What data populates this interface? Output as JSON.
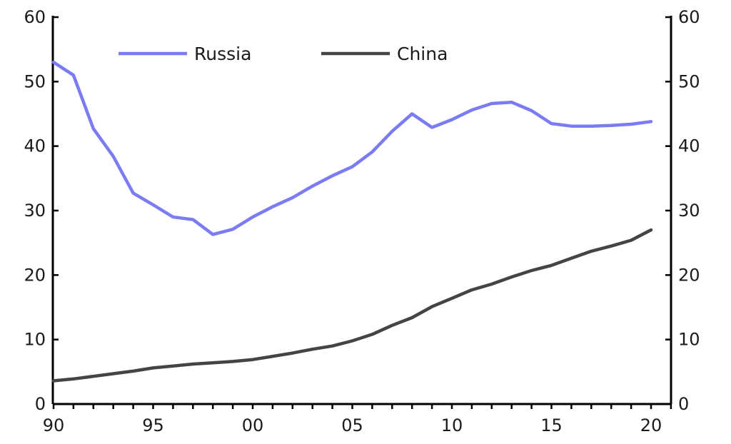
{
  "chart_data": {
    "type": "line",
    "title": "",
    "xlabel": "",
    "ylabel": "",
    "x": [
      1990,
      1991,
      1992,
      1993,
      1994,
      1995,
      1996,
      1997,
      1998,
      1999,
      2000,
      2001,
      2002,
      2003,
      2004,
      2005,
      2006,
      2007,
      2008,
      2009,
      2010,
      2011,
      2012,
      2013,
      2014,
      2015,
      2016,
      2017,
      2018,
      2019,
      2020
    ],
    "xlim": [
      1990,
      2021
    ],
    "ylim": [
      0,
      60
    ],
    "y2lim": [
      0,
      60
    ],
    "grid": false,
    "legend_position": "top",
    "x_ticks": [
      {
        "value": 1990,
        "label": "90"
      },
      {
        "value": 1995,
        "label": "95"
      },
      {
        "value": 2000,
        "label": "00"
      },
      {
        "value": 2005,
        "label": "05"
      },
      {
        "value": 2010,
        "label": "10"
      },
      {
        "value": 2015,
        "label": "15"
      },
      {
        "value": 2020,
        "label": "20"
      }
    ],
    "y_ticks": [
      0,
      10,
      20,
      30,
      40,
      50,
      60
    ],
    "series": [
      {
        "name": "Russia",
        "color": "#7b7bf5",
        "values": [
          53.0,
          51.0,
          42.7,
          38.4,
          32.7,
          30.9,
          29.0,
          28.6,
          26.3,
          27.1,
          29.0,
          30.6,
          32.0,
          33.8,
          35.4,
          36.8,
          39.1,
          42.3,
          45.0,
          42.9,
          44.1,
          45.6,
          46.6,
          46.8,
          45.5,
          43.5,
          43.1,
          43.1,
          43.2,
          43.4,
          43.8
        ]
      },
      {
        "name": "China",
        "color": "#444444",
        "values": [
          3.6,
          3.9,
          4.3,
          4.7,
          5.1,
          5.6,
          5.9,
          6.2,
          6.4,
          6.6,
          6.9,
          7.4,
          7.9,
          8.5,
          9.0,
          9.8,
          10.8,
          12.2,
          13.4,
          15.1,
          16.4,
          17.7,
          18.6,
          19.7,
          20.7,
          21.5,
          22.6,
          23.7,
          24.5,
          25.4,
          27.0
        ]
      }
    ]
  }
}
